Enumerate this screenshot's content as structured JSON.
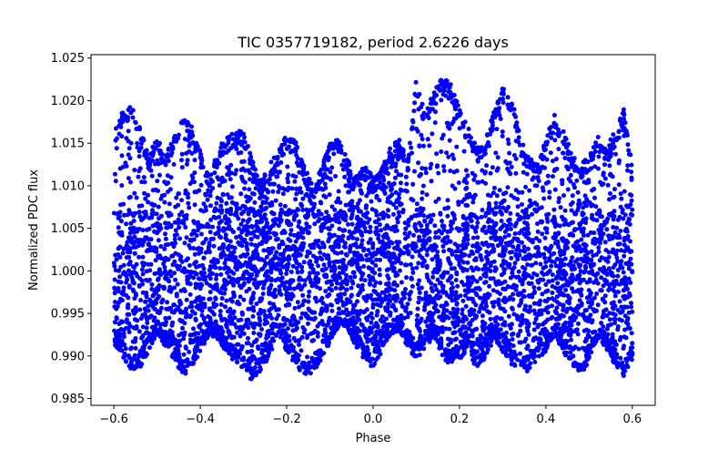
{
  "chart_data": {
    "type": "scatter",
    "title": "TIC 0357719182, period 2.6226 days",
    "xlabel": "Phase",
    "ylabel": "Normalized PDC flux",
    "xlim": [
      -0.653,
      0.653
    ],
    "ylim": [
      0.9842,
      1.0254
    ],
    "xticks": [
      -0.6,
      -0.4,
      -0.2,
      0.0,
      0.2,
      0.4,
      0.6
    ],
    "xtick_labels": [
      "−0.6",
      "−0.4",
      "−0.2",
      "0.0",
      "0.2",
      "0.4",
      "0.6"
    ],
    "yticks": [
      0.985,
      0.99,
      0.995,
      1.0,
      1.005,
      1.01,
      1.015,
      1.02,
      1.025
    ],
    "ytick_labels": [
      "0.985",
      "0.990",
      "0.995",
      "1.000",
      "1.005",
      "1.010",
      "1.015",
      "1.020",
      "1.025"
    ],
    "grid": false,
    "marker_color": "#0000ff",
    "x_range_of_points": [
      -0.6,
      0.6
    ],
    "core_band": [
      0.993,
      1.007
    ],
    "upper_envelope": [
      [
        -0.6,
        1.016
      ],
      [
        -0.58,
        1.019
      ],
      [
        -0.56,
        1.0195
      ],
      [
        -0.54,
        1.017
      ],
      [
        -0.52,
        1.0135
      ],
      [
        -0.5,
        1.016
      ],
      [
        -0.48,
        1.0135
      ],
      [
        -0.46,
        1.0165
      ],
      [
        -0.44,
        1.0185
      ],
      [
        -0.42,
        1.017
      ],
      [
        -0.4,
        1.014
      ],
      [
        -0.38,
        1.011
      ],
      [
        -0.36,
        1.0145
      ],
      [
        -0.34,
        1.0155
      ],
      [
        -0.32,
        1.0165
      ],
      [
        -0.3,
        1.0165
      ],
      [
        -0.28,
        1.013
      ],
      [
        -0.26,
        1.0105
      ],
      [
        -0.24,
        1.0125
      ],
      [
        -0.22,
        1.014
      ],
      [
        -0.2,
        1.016
      ],
      [
        -0.18,
        1.0155
      ],
      [
        -0.16,
        1.0125
      ],
      [
        -0.14,
        1.01
      ],
      [
        -0.12,
        1.012
      ],
      [
        -0.1,
        1.015
      ],
      [
        -0.08,
        1.0155
      ],
      [
        -0.06,
        1.0135
      ],
      [
        -0.04,
        1.011
      ],
      [
        -0.02,
        1.0125
      ],
      [
        0.0,
        1.011
      ],
      [
        0.02,
        1.012
      ],
      [
        0.04,
        1.0145
      ],
      [
        0.06,
        1.0155
      ],
      [
        0.08,
        1.013
      ],
      [
        0.1,
        1.0225
      ],
      [
        0.12,
        1.0185
      ],
      [
        0.14,
        1.021
      ],
      [
        0.16,
        1.023
      ],
      [
        0.18,
        1.022
      ],
      [
        0.2,
        1.0195
      ],
      [
        0.22,
        1.017
      ],
      [
        0.24,
        1.0145
      ],
      [
        0.26,
        1.0155
      ],
      [
        0.28,
        1.019
      ],
      [
        0.3,
        1.0215
      ],
      [
        0.32,
        1.0205
      ],
      [
        0.34,
        1.016
      ],
      [
        0.36,
        1.0135
      ],
      [
        0.38,
        1.0125
      ],
      [
        0.4,
        1.0155
      ],
      [
        0.42,
        1.0185
      ],
      [
        0.44,
        1.0165
      ],
      [
        0.46,
        1.014
      ],
      [
        0.48,
        1.0125
      ],
      [
        0.5,
        1.0135
      ],
      [
        0.52,
        1.016
      ],
      [
        0.54,
        1.0145
      ],
      [
        0.56,
        1.0165
      ],
      [
        0.58,
        1.019
      ],
      [
        0.6,
        1.0125
      ]
    ],
    "lower_envelope": [
      [
        -0.6,
        0.9915
      ],
      [
        -0.58,
        0.99
      ],
      [
        -0.56,
        0.988
      ],
      [
        -0.54,
        0.9885
      ],
      [
        -0.52,
        0.9905
      ],
      [
        -0.5,
        0.9925
      ],
      [
        -0.48,
        0.991
      ],
      [
        -0.46,
        0.9895
      ],
      [
        -0.44,
        0.9875
      ],
      [
        -0.42,
        0.9885
      ],
      [
        -0.4,
        0.9905
      ],
      [
        -0.38,
        0.9925
      ],
      [
        -0.36,
        0.992
      ],
      [
        -0.34,
        0.9905
      ],
      [
        -0.32,
        0.989
      ],
      [
        -0.3,
        0.9885
      ],
      [
        -0.28,
        0.987
      ],
      [
        -0.26,
        0.988
      ],
      [
        -0.24,
        0.99
      ],
      [
        -0.22,
        0.9925
      ],
      [
        -0.2,
        0.9905
      ],
      [
        -0.18,
        0.989
      ],
      [
        -0.16,
        0.9875
      ],
      [
        -0.14,
        0.988
      ],
      [
        -0.12,
        0.9895
      ],
      [
        -0.1,
        0.9915
      ],
      [
        -0.08,
        0.9935
      ],
      [
        -0.06,
        0.9935
      ],
      [
        -0.04,
        0.991
      ],
      [
        -0.02,
        0.9895
      ],
      [
        0.0,
        0.9885
      ],
      [
        0.02,
        0.9905
      ],
      [
        0.04,
        0.9925
      ],
      [
        0.06,
        0.993
      ],
      [
        0.08,
        0.991
      ],
      [
        0.1,
        0.9895
      ],
      [
        0.12,
        0.9905
      ],
      [
        0.14,
        0.9925
      ],
      [
        0.16,
        0.99
      ],
      [
        0.18,
        0.9885
      ],
      [
        0.2,
        0.9895
      ],
      [
        0.22,
        0.9905
      ],
      [
        0.24,
        0.9885
      ],
      [
        0.26,
        0.9895
      ],
      [
        0.28,
        0.992
      ],
      [
        0.3,
        0.9905
      ],
      [
        0.32,
        0.989
      ],
      [
        0.34,
        0.9885
      ],
      [
        0.36,
        0.988
      ],
      [
        0.38,
        0.9895
      ],
      [
        0.4,
        0.9905
      ],
      [
        0.42,
        0.9925
      ],
      [
        0.44,
        0.9905
      ],
      [
        0.46,
        0.989
      ],
      [
        0.48,
        0.9875
      ],
      [
        0.5,
        0.9895
      ],
      [
        0.52,
        0.992
      ],
      [
        0.54,
        0.9905
      ],
      [
        0.56,
        0.989
      ],
      [
        0.58,
        0.9875
      ],
      [
        0.6,
        0.9895
      ]
    ]
  }
}
